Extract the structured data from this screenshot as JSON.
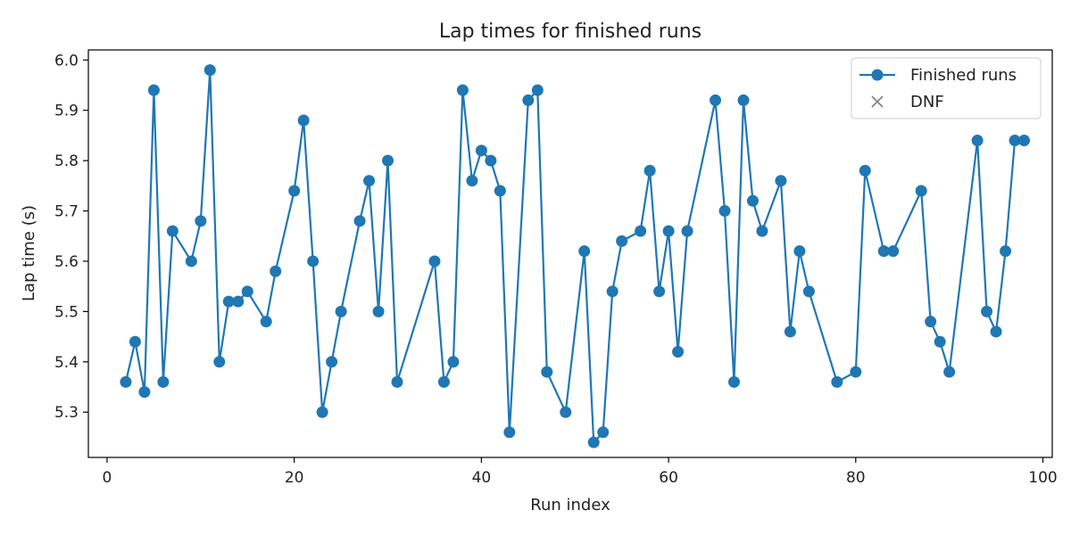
{
  "chart_data": {
    "type": "line",
    "title": "Lap times for finished runs",
    "xlabel": "Run index",
    "ylabel": "Lap time (s)",
    "xlim": [
      -2,
      101
    ],
    "ylim": [
      5.21,
      6.02
    ],
    "xticks": [
      0,
      20,
      40,
      60,
      80,
      100
    ],
    "yticks": [
      5.3,
      5.4,
      5.5,
      5.6,
      5.7,
      5.8,
      5.9,
      6.0
    ],
    "grid": false,
    "legend_position": "top-right",
    "legend": [
      {
        "label": "Finished runs",
        "marker": "circle-line",
        "color": "#1f77b4"
      },
      {
        "label": "DNF",
        "marker": "x",
        "color": "#7f7f7f"
      }
    ],
    "series": [
      {
        "name": "Finished runs",
        "color": "#1f77b4",
        "x": [
          2,
          3,
          4,
          5,
          6,
          7,
          9,
          10,
          11,
          12,
          13,
          14,
          15,
          17,
          18,
          20,
          21,
          22,
          23,
          24,
          25,
          27,
          28,
          29,
          30,
          31,
          35,
          36,
          37,
          38,
          39,
          40,
          41,
          42,
          43,
          45,
          46,
          47,
          49,
          51,
          52,
          53,
          54,
          55,
          57,
          58,
          59,
          60,
          61,
          62,
          65,
          66,
          67,
          68,
          69,
          70,
          72,
          73,
          74,
          75,
          78,
          80,
          81,
          83,
          84,
          87,
          88,
          89,
          90,
          93,
          94,
          95,
          96,
          97,
          98
        ],
        "y": [
          5.36,
          5.44,
          5.34,
          5.94,
          5.36,
          5.66,
          5.6,
          5.68,
          5.98,
          5.4,
          5.52,
          5.52,
          5.54,
          5.48,
          5.58,
          5.74,
          5.88,
          5.6,
          5.3,
          5.4,
          5.5,
          5.68,
          5.76,
          5.5,
          5.8,
          5.36,
          5.6,
          5.36,
          5.4,
          5.94,
          5.76,
          5.82,
          5.8,
          5.74,
          5.26,
          5.92,
          5.94,
          5.38,
          5.3,
          5.62,
          5.24,
          5.26,
          5.54,
          5.64,
          5.66,
          5.78,
          5.54,
          5.66,
          5.42,
          5.66,
          5.92,
          5.7,
          5.36,
          5.92,
          5.72,
          5.66,
          5.76,
          5.46,
          5.62,
          5.54,
          5.36,
          5.38,
          5.78,
          5.62,
          5.62,
          5.74,
          5.48,
          5.44,
          5.38,
          5.84,
          5.5,
          5.46,
          5.62,
          5.84,
          5.84
        ]
      },
      {
        "name": "DNF",
        "color": "#7f7f7f",
        "x": [],
        "y": []
      }
    ]
  }
}
